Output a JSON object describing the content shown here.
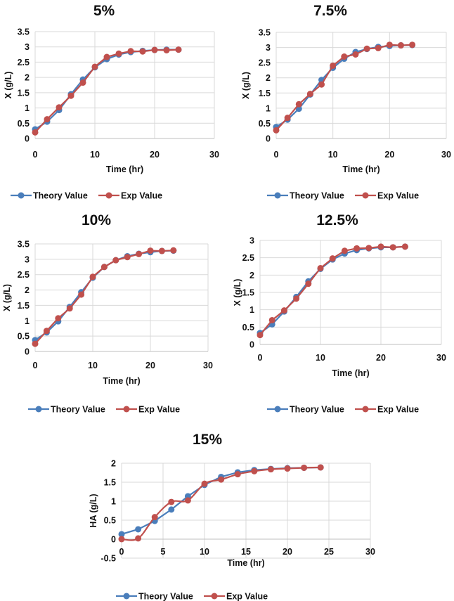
{
  "colors": {
    "theory": "#4a7ebb",
    "exp": "#c0504d",
    "grid": "#d9d9d9"
  },
  "chart_data": [
    {
      "type": "line",
      "title": "5%",
      "xlabel": "Time (hr)",
      "ylabel": "X (g/L)",
      "xlim": [
        0,
        30
      ],
      "ylim": [
        0,
        3.5
      ],
      "xticks": [
        0,
        10,
        20,
        30
      ],
      "yticks": [
        0,
        0.5,
        1,
        1.5,
        2,
        2.5,
        3,
        3.5
      ],
      "ytick_labels": [
        "0",
        "0.5",
        "1",
        "1.5",
        "2",
        "2.5",
        "3",
        "3.5"
      ],
      "grid": true,
      "legend": "bottom",
      "x": [
        0,
        2,
        4,
        6,
        8,
        10,
        12,
        14,
        16,
        18,
        20,
        22,
        24
      ],
      "series": [
        {
          "name": "Theory Value",
          "values": [
            0.3,
            0.55,
            0.93,
            1.45,
            1.93,
            2.33,
            2.6,
            2.75,
            2.83,
            2.87,
            2.9,
            2.91,
            2.91
          ]
        },
        {
          "name": "Exp Value",
          "values": [
            0.2,
            0.63,
            1.02,
            1.4,
            1.83,
            2.35,
            2.67,
            2.78,
            2.86,
            2.85,
            2.9,
            2.89,
            2.91
          ]
        }
      ]
    },
    {
      "type": "line",
      "title": "7.5%",
      "xlabel": "Time (hr)",
      "ylabel": "X (g/L)",
      "xlim": [
        0,
        30
      ],
      "ylim": [
        0,
        3.5
      ],
      "xticks": [
        0,
        10,
        20,
        30
      ],
      "yticks": [
        0,
        0.5,
        1,
        1.5,
        2,
        2.5,
        3,
        3.5
      ],
      "ytick_labels": [
        "0",
        "0.5",
        "1",
        "1.5",
        "2",
        "2.5",
        "3",
        "3.5"
      ],
      "grid": true,
      "legend": "bottom",
      "x": [
        0,
        2,
        4,
        6,
        8,
        10,
        12,
        14,
        16,
        18,
        20,
        22,
        24
      ],
      "series": [
        {
          "name": "Theory Value",
          "values": [
            0.38,
            0.62,
            0.98,
            1.45,
            1.93,
            2.33,
            2.63,
            2.85,
            2.95,
            3.02,
            3.05,
            3.07,
            3.08
          ]
        },
        {
          "name": "Exp Value",
          "values": [
            0.27,
            0.68,
            1.13,
            1.47,
            1.78,
            2.4,
            2.7,
            2.77,
            2.96,
            2.98,
            3.09,
            3.07,
            3.09
          ]
        }
      ]
    },
    {
      "type": "line",
      "title": "10%",
      "xlabel": "Time (hr)",
      "ylabel": "X (g/L)",
      "xlim": [
        0,
        30
      ],
      "ylim": [
        0,
        3.5
      ],
      "xticks": [
        0,
        10,
        20,
        30
      ],
      "yticks": [
        0,
        0.5,
        1,
        1.5,
        2,
        2.5,
        3,
        3.5
      ],
      "ytick_labels": [
        "0",
        "0.5",
        "1",
        "1.5",
        "2",
        "2.5",
        "3",
        "3.5"
      ],
      "grid": true,
      "legend": "bottom",
      "x": [
        0,
        2,
        4,
        6,
        8,
        10,
        12,
        14,
        16,
        18,
        20,
        22,
        24
      ],
      "series": [
        {
          "name": "Theory Value",
          "values": [
            0.37,
            0.62,
            0.98,
            1.45,
            1.93,
            2.4,
            2.75,
            2.97,
            3.1,
            3.18,
            3.23,
            3.27,
            3.28
          ]
        },
        {
          "name": "Exp Value",
          "values": [
            0.25,
            0.67,
            1.08,
            1.4,
            1.85,
            2.43,
            2.75,
            2.97,
            3.07,
            3.17,
            3.28,
            3.27,
            3.29
          ]
        }
      ]
    },
    {
      "type": "line",
      "title": "12.5%",
      "xlabel": "Time (hr)",
      "ylabel": "X (g/L)",
      "xlim": [
        0,
        30
      ],
      "ylim": [
        0,
        3
      ],
      "xticks": [
        0,
        10,
        20,
        30
      ],
      "yticks": [
        0,
        0.5,
        1,
        1.5,
        2,
        2.5,
        3
      ],
      "ytick_labels": [
        "0",
        "0.5",
        "1",
        "1.5",
        "2",
        "2.5",
        "3"
      ],
      "grid": true,
      "legend": "bottom",
      "x": [
        0,
        2,
        4,
        6,
        8,
        10,
        12,
        14,
        16,
        18,
        20,
        22,
        24
      ],
      "series": [
        {
          "name": "Theory Value",
          "values": [
            0.33,
            0.58,
            0.95,
            1.37,
            1.82,
            2.18,
            2.45,
            2.62,
            2.72,
            2.77,
            2.8,
            2.8,
            2.82
          ]
        },
        {
          "name": "Exp Value",
          "values": [
            0.27,
            0.7,
            0.98,
            1.32,
            1.75,
            2.2,
            2.48,
            2.7,
            2.77,
            2.78,
            2.82,
            2.8,
            2.82
          ]
        }
      ]
    },
    {
      "type": "line",
      "title": "15%",
      "xlabel": "Time (hr)",
      "ylabel": "HA (g/L)",
      "xlim": [
        0,
        30
      ],
      "ylim": [
        -0.5,
        2
      ],
      "xticks": [
        0,
        5,
        10,
        15,
        20,
        25,
        30
      ],
      "yticks": [
        -0.5,
        0,
        0.5,
        1,
        1.5,
        2
      ],
      "ytick_labels": [
        "-0.5",
        "0",
        "0.5",
        "1",
        "1.5",
        "2"
      ],
      "grid": true,
      "legend": "bottom",
      "x": [
        0,
        2,
        4,
        6,
        8,
        10,
        12,
        14,
        16,
        18,
        20,
        22,
        24
      ],
      "series": [
        {
          "name": "Theory Value",
          "values": [
            0.13,
            0.26,
            0.48,
            0.78,
            1.13,
            1.43,
            1.64,
            1.76,
            1.82,
            1.85,
            1.87,
            1.88,
            1.89
          ]
        },
        {
          "name": "Exp Value",
          "values": [
            0.0,
            0.02,
            0.58,
            0.98,
            1.02,
            1.46,
            1.57,
            1.71,
            1.79,
            1.84,
            1.86,
            1.88,
            1.89
          ],
          "smooth": true
        }
      ]
    }
  ]
}
